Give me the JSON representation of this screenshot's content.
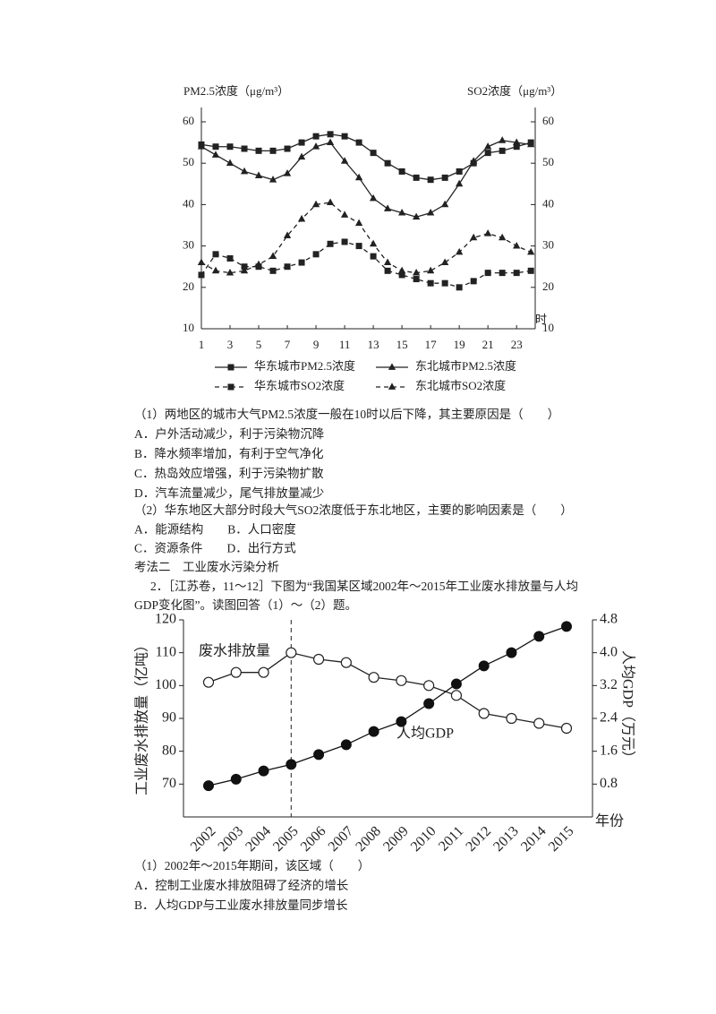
{
  "chart_data": [
    {
      "type": "line",
      "y_label": "PM2.5浓度（μg/m³）",
      "y2_label": "SO2浓度（μg/m³）",
      "x_label": "时",
      "x": [
        1,
        2,
        3,
        4,
        5,
        6,
        7,
        8,
        9,
        10,
        11,
        12,
        13,
        14,
        15,
        16,
        17,
        18,
        19,
        20,
        21,
        22,
        23,
        24
      ],
      "xlim": [
        1,
        24.3
      ],
      "xticks": [
        1,
        3,
        5,
        7,
        9,
        11,
        13,
        15,
        17,
        19,
        21,
        23
      ],
      "ylim": [
        10,
        60
      ],
      "yticks": [
        10,
        20,
        30,
        40,
        50,
        60
      ],
      "y2lim": [
        10,
        60
      ],
      "y2ticks": [
        10,
        20,
        30,
        40,
        50,
        60
      ],
      "series": [
        {
          "name": "华东城市PM2.5浓度",
          "color": "#222222",
          "marker": "square",
          "linestyle": "solid",
          "values": [
            54.5,
            54,
            54,
            53.5,
            53,
            53,
            53.5,
            55,
            56.5,
            57,
            56.5,
            55,
            52.5,
            50,
            48,
            46.5,
            46,
            46.5,
            48,
            50,
            52.5,
            53,
            54,
            55
          ]
        },
        {
          "name": "东北城市PM2.5浓度",
          "color": "#222222",
          "marker": "triangle",
          "linestyle": "solid",
          "values": [
            54,
            52,
            50,
            48,
            47,
            46,
            47.5,
            51.5,
            54,
            55,
            50.5,
            46.5,
            41.5,
            39,
            38,
            37,
            38,
            40,
            45,
            50.5,
            54,
            55.5,
            55,
            54.5
          ]
        },
        {
          "name": "华东城市SO2浓度",
          "color": "#222222",
          "marker": "square",
          "linestyle": "dashed",
          "axis": "y2",
          "values": [
            23,
            28,
            27,
            25,
            25,
            24,
            25,
            26,
            28,
            30.5,
            31,
            30,
            27.5,
            24,
            23,
            22,
            21,
            21,
            20,
            21.5,
            23.5,
            23.5,
            23.5,
            24
          ]
        },
        {
          "name": "东北城市SO2浓度",
          "color": "#222222",
          "marker": "triangle",
          "linestyle": "dashed",
          "axis": "y2",
          "values": [
            26,
            24,
            23.5,
            24,
            25.5,
            27.5,
            32.5,
            36.5,
            40,
            40.5,
            37.5,
            35.5,
            30.5,
            26,
            24,
            23.5,
            24,
            26,
            28.5,
            32,
            33,
            32,
            30,
            28.5
          ]
        }
      ]
    },
    {
      "type": "line",
      "y_label": "工业废水排放量（亿吨）",
      "y2_label": "人均GDP（万元）",
      "x_label": "年份",
      "categories": [
        "2002",
        "2003",
        "2004",
        "2005",
        "2006",
        "2007",
        "2008",
        "2009",
        "2010",
        "2011",
        "2012",
        "2013",
        "2014",
        "2015"
      ],
      "ylim": [
        60,
        120
      ],
      "yticks": [
        70,
        80,
        90,
        100,
        110,
        120
      ],
      "y2lim": [
        0,
        4.8
      ],
      "y2ticks": [
        0.8,
        1.6,
        2.4,
        3.2,
        {
          "value": 4,
          "label": "4.0"
        },
        4.8
      ],
      "series": [
        {
          "name": "废水排放量",
          "color": "#222222",
          "marker": "circle-open",
          "linestyle": "solid",
          "values": [
            101,
            104,
            104,
            110,
            108,
            107,
            102.5,
            101.5,
            100,
            97,
            91.5,
            90,
            88.5,
            87
          ]
        },
        {
          "name": "人均GDP",
          "color": "#111111",
          "marker": "circle",
          "linestyle": "solid",
          "axis": "y2",
          "values": [
            0.76,
            0.92,
            1.12,
            1.28,
            1.52,
            1.76,
            2.08,
            2.32,
            2.76,
            3.24,
            3.68,
            4.0,
            4.4,
            4.64
          ]
        }
      ]
    }
  ],
  "blocks": [
    {
      "lines": [
        "（1）两地区的城市大气PM2.5浓度一般在10时以后下降，其主要原因是（　　）",
        "A．户外活动减少，利于污染物沉降",
        "B．降水频率增加，有利于空气净化",
        "C．热岛效应增强，利于污染物扩散",
        "D．汽车流量减少，尾气排放量减少"
      ]
    },
    {
      "lines": [
        "（2）华东地区大部分时段大气SO2浓度低于东北地区，主要的影响因素是（　　）",
        "A．能源结构　　B．人口密度",
        "C．资源条件　　D．出行方式",
        "考法二　工业废水污染分析",
        "2．［江苏卷，11～12］下图为“我国某区域2002年～2015年工业废水排放量与人均",
        "GDP变化图”。读图回答（1）～（2）题。"
      ]
    },
    {
      "lines": [
        "（1）2002年～2015年期间，该区域（　　）",
        "A．控制工业废水排放阻碍了经济的增长",
        "B．人均GDP与工业废水排放量同步增长"
      ]
    }
  ]
}
